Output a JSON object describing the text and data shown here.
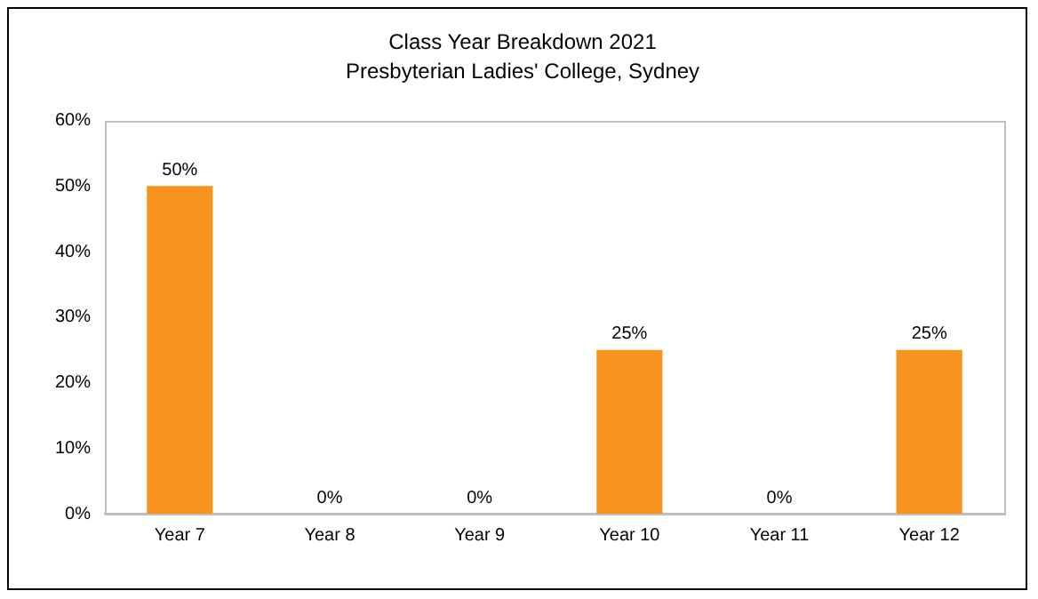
{
  "chart_data": {
    "type": "bar",
    "title": "Class Year Breakdown 2021",
    "subtitle": "Presbyterian Ladies' College, Sydney",
    "categories": [
      "Year 7",
      "Year 8",
      "Year 9",
      "Year 10",
      "Year 11",
      "Year 12"
    ],
    "values": [
      50,
      0,
      0,
      25,
      0,
      25
    ],
    "color": "#f7941d",
    "value_labels": [
      "50%",
      "0%",
      "0%",
      "25%",
      "0%",
      "25%"
    ],
    "ylim": [
      0,
      60
    ],
    "yticks": [
      {
        "value": 0,
        "label": "0%"
      },
      {
        "value": 10,
        "label": "10%"
      },
      {
        "value": 20,
        "label": "20%"
      },
      {
        "value": 30,
        "label": "30%"
      },
      {
        "value": 40,
        "label": "40%"
      },
      {
        "value": 50,
        "label": "50%"
      },
      {
        "value": 60,
        "label": "60%"
      }
    ],
    "grid": false,
    "legend": false
  }
}
